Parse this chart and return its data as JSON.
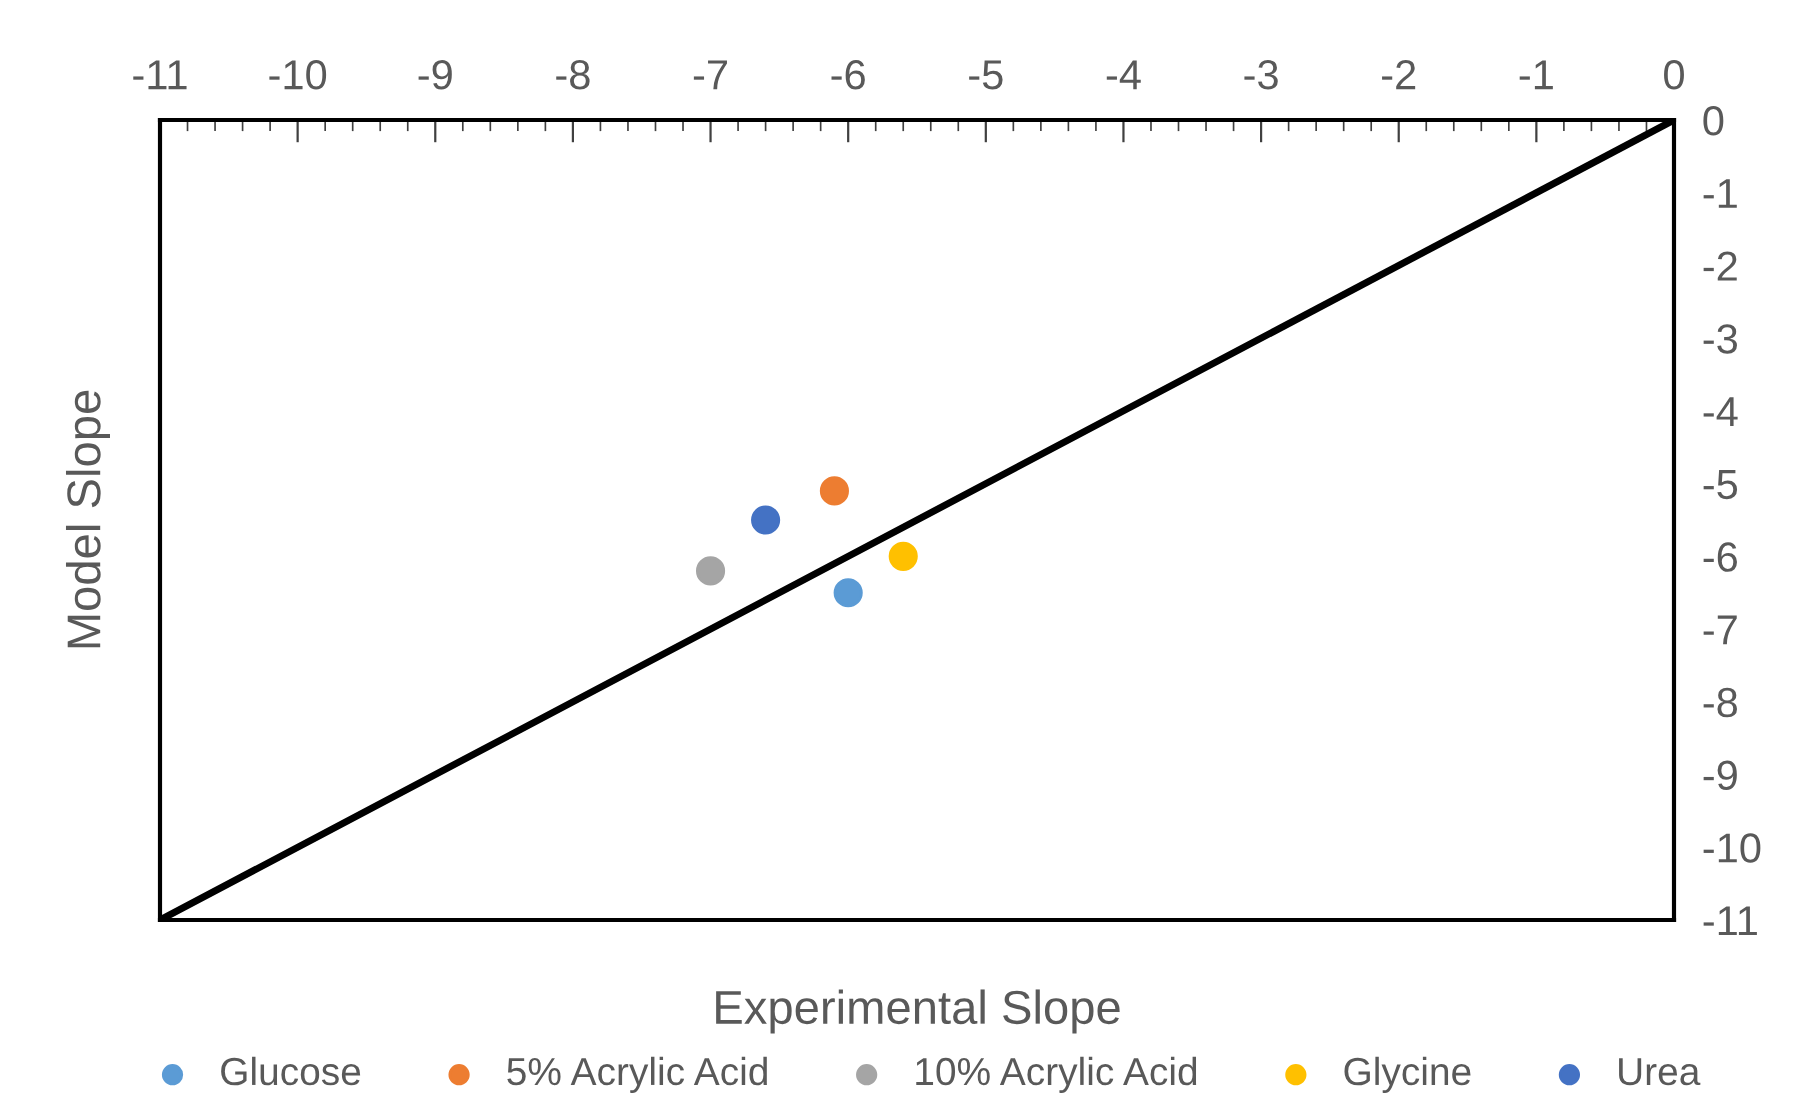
{
  "chart_data": {
    "type": "scatter",
    "xlabel": "Experimental Slope",
    "ylabel": "Model Slope",
    "xlim": [
      -11,
      0
    ],
    "ylim": [
      -11,
      0
    ],
    "xticks": [
      -11,
      -10,
      -9,
      -8,
      -7,
      -6,
      -5,
      -4,
      -3,
      -2,
      -1,
      0
    ],
    "yticks": [
      -11,
      -10,
      -9,
      -8,
      -7,
      -6,
      -5,
      -4,
      -3,
      -2,
      -1,
      0
    ],
    "grid": false,
    "legend": "bottom",
    "series": [
      {
        "name": "Glucose",
        "color": "#5b9bd5",
        "marker": "circle",
        "x": [
          -6.0
        ],
        "values": [
          -6.5
        ]
      },
      {
        "name": "5% Acrylic Acid",
        "color": "#ed7d31",
        "marker": "circle",
        "x": [
          -6.1
        ],
        "values": [
          -5.1
        ]
      },
      {
        "name": "10% Acrylic Acid",
        "color": "#a5a5a5",
        "marker": "circle",
        "x": [
          -7.0
        ],
        "values": [
          -6.2
        ]
      },
      {
        "name": "Glycine",
        "color": "#ffc000",
        "marker": "circle",
        "x": [
          -5.6
        ],
        "values": [
          -6.0
        ]
      },
      {
        "name": "Urea",
        "color": "#4472c4",
        "marker": "circle",
        "x": [
          -6.6
        ],
        "values": [
          -5.5
        ]
      },
      {
        "type": "line",
        "color": "#000000",
        "line_style": "solid",
        "marker": "none",
        "x": [
          -11,
          0
        ],
        "values": [
          -11,
          0
        ]
      }
    ]
  }
}
